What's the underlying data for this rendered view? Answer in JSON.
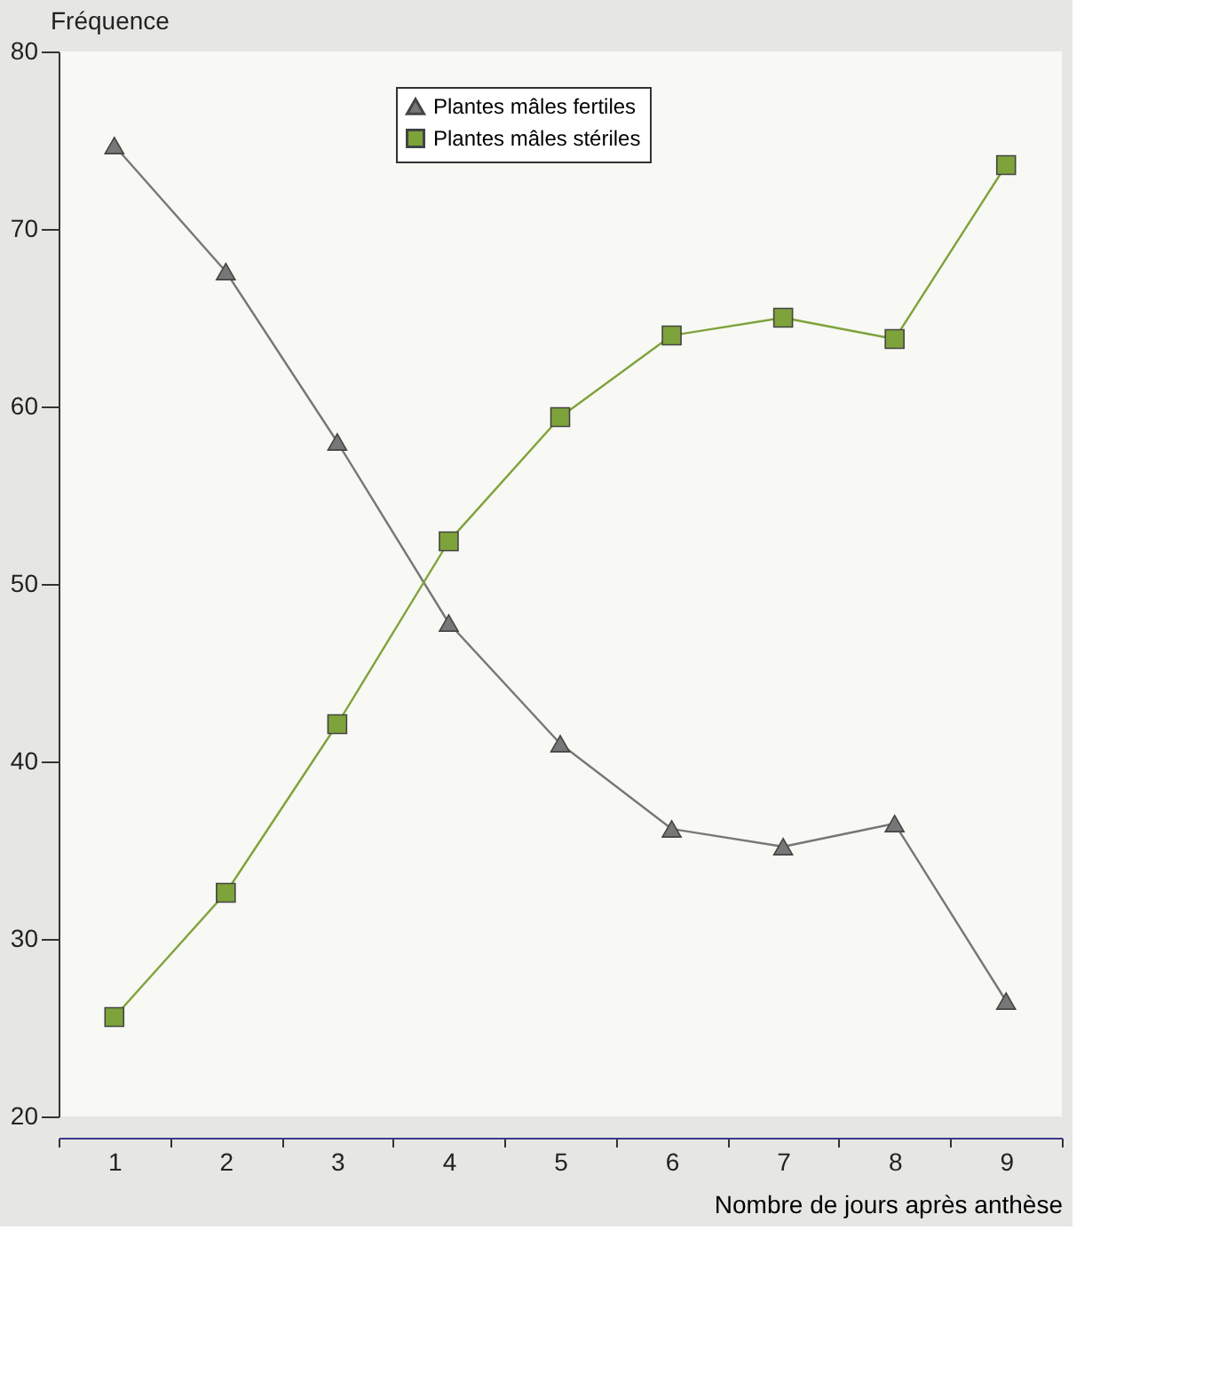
{
  "chart_data": {
    "type": "line",
    "ylabel": "Fréquence",
    "xlabel": "Nombre de jours après anthèse",
    "categories": [
      "1",
      "2",
      "3",
      "4",
      "5",
      "6",
      "7",
      "8",
      "9"
    ],
    "series": [
      {
        "name": "Plantes mâles fertiles",
        "color": "#777777",
        "marker": "triangle",
        "values": [
          74.7,
          67.6,
          58.0,
          47.8,
          41.0,
          36.2,
          35.2,
          36.5,
          26.5
        ]
      },
      {
        "name": "Plantes mâles stériles",
        "color": "#7ea33a",
        "marker": "square",
        "values": [
          25.6,
          32.6,
          42.1,
          52.4,
          59.4,
          64.0,
          65.0,
          63.8,
          73.6
        ]
      }
    ],
    "ylim": [
      20,
      80
    ],
    "yticks": [
      20,
      30,
      40,
      50,
      60,
      70,
      80
    ],
    "grid": false,
    "legend": "top",
    "line_style": "solid"
  }
}
